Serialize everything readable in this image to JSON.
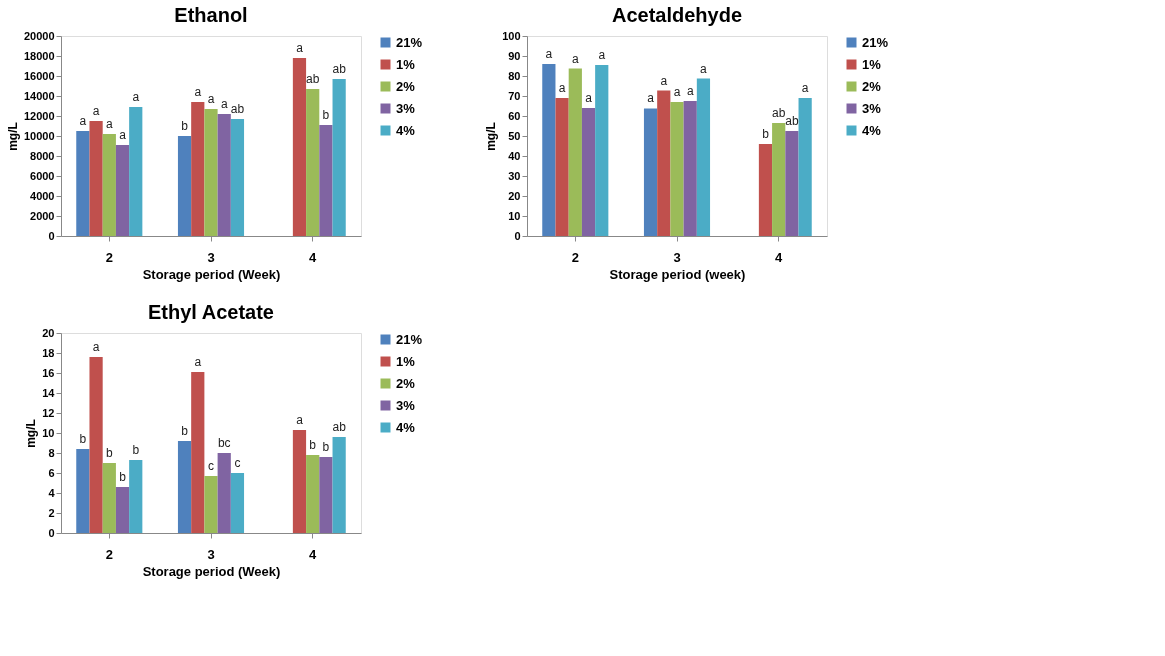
{
  "chart_data": [
    {
      "type": "bar",
      "title": "Ethanol",
      "xlabel": "Storage period (Week)",
      "ylabel": "mg/L",
      "categories": [
        "2",
        "3",
        "4"
      ],
      "ylim": [
        0,
        20000
      ],
      "yticks": [
        0,
        2000,
        4000,
        6000,
        8000,
        10000,
        12000,
        14000,
        16000,
        18000,
        20000
      ],
      "grid": false,
      "legend": "right",
      "series": [
        {
          "name": "21%",
          "color": "#4f81bd",
          "values": [
            10500,
            10000,
            null
          ],
          "value_labels": [
            "a",
            "b",
            null
          ]
        },
        {
          "name": "1%",
          "color": "#c0504d",
          "values": [
            11500,
            13400,
            17800
          ],
          "value_labels": [
            "a",
            "a",
            "a"
          ]
        },
        {
          "name": "2%",
          "color": "#9bbb59",
          "values": [
            10200,
            12700,
            14700
          ],
          "value_labels": [
            "a",
            "a",
            "ab"
          ]
        },
        {
          "name": "3%",
          "color": "#8064a2",
          "values": [
            9100,
            12200,
            11100
          ],
          "value_labels": [
            "a",
            "a",
            "b"
          ]
        },
        {
          "name": "4%",
          "color": "#4bacc6",
          "values": [
            12900,
            11700,
            15700
          ],
          "value_labels": [
            "a",
            "ab",
            "ab"
          ]
        }
      ]
    },
    {
      "type": "bar",
      "title": "Acetaldehyde",
      "xlabel": "Storage period (week)",
      "ylabel": "mg/L",
      "categories": [
        "2",
        "3",
        "4"
      ],
      "ylim": [
        0,
        100
      ],
      "yticks": [
        0,
        10,
        20,
        30,
        40,
        50,
        60,
        70,
        80,
        90,
        100
      ],
      "grid": false,
      "legend": "right",
      "series": [
        {
          "name": "21%",
          "color": "#4f81bd",
          "values": [
            86,
            63.8,
            null
          ],
          "value_labels": [
            "a",
            "a",
            null
          ]
        },
        {
          "name": "1%",
          "color": "#c0504d",
          "values": [
            69,
            72.7,
            46
          ],
          "value_labels": [
            "a",
            "a",
            "b"
          ]
        },
        {
          "name": "2%",
          "color": "#9bbb59",
          "values": [
            83.7,
            67,
            56.5
          ],
          "value_labels": [
            "a",
            "a",
            "ab"
          ]
        },
        {
          "name": "3%",
          "color": "#8064a2",
          "values": [
            64,
            67.5,
            52.5
          ],
          "value_labels": [
            "a",
            "a",
            "ab"
          ]
        },
        {
          "name": "4%",
          "color": "#4bacc6",
          "values": [
            85.5,
            78.7,
            69
          ],
          "value_labels": [
            "a",
            "a",
            "a"
          ]
        }
      ]
    },
    {
      "type": "bar",
      "title": "Ethyl Acetate",
      "xlabel": "Storage period (Week)",
      "ylabel": "mg/L",
      "categories": [
        "2",
        "3",
        "4"
      ],
      "ylim": [
        0,
        20
      ],
      "yticks": [
        0,
        2,
        4,
        6,
        8,
        10,
        12,
        14,
        16,
        18,
        20
      ],
      "grid": false,
      "legend": "right",
      "series": [
        {
          "name": "21%",
          "color": "#4f81bd",
          "values": [
            8.4,
            9.2,
            null
          ],
          "value_labels": [
            "b",
            "b",
            null
          ]
        },
        {
          "name": "1%",
          "color": "#c0504d",
          "values": [
            17.6,
            16.1,
            10.3
          ],
          "value_labels": [
            "a",
            "a",
            "a"
          ]
        },
        {
          "name": "2%",
          "color": "#9bbb59",
          "values": [
            7.0,
            5.7,
            7.8
          ],
          "value_labels": [
            "b",
            "c",
            "b"
          ]
        },
        {
          "name": "3%",
          "color": "#8064a2",
          "values": [
            4.6,
            8.0,
            7.6
          ],
          "value_labels": [
            "b",
            "bc",
            "b"
          ]
        },
        {
          "name": "4%",
          "color": "#4bacc6",
          "values": [
            7.3,
            6.0,
            9.6
          ],
          "value_labels": [
            "b",
            "c",
            "ab"
          ]
        }
      ]
    }
  ]
}
